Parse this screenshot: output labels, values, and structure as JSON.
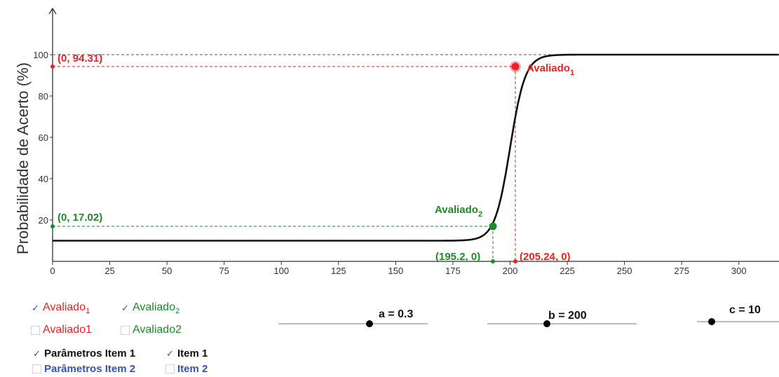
{
  "graph": {
    "y_axis_label": "Probabilidade de Acerto (%)",
    "x_ticks": [
      "0",
      "25",
      "50",
      "75",
      "100",
      "125",
      "150",
      "175",
      "200",
      "225",
      "250",
      "275",
      "300"
    ],
    "y_ticks": [
      "20",
      "40",
      "60",
      "80",
      "100"
    ],
    "point1": {
      "coord_label": "(0, 94.31)",
      "x_label": "(205.24, 0)",
      "name": "Avaliado",
      "sub": "1"
    },
    "point2": {
      "coord_label": "(0, 17.02)",
      "x_label": "(195.2, 0)",
      "name": "Avaliado",
      "sub": "2"
    }
  },
  "chart_data": {
    "type": "line",
    "title": "",
    "xlabel": "",
    "ylabel": "Probabilidade de Acerto (%)",
    "xlim": [
      0,
      315
    ],
    "ylim": [
      0,
      120
    ],
    "grid": false,
    "curve": {
      "function": "logistic",
      "a": 0.3,
      "b": 200,
      "c": 10
    },
    "points": [
      {
        "name": "Avaliado1",
        "x": 205.24,
        "y": 94.31,
        "color": "#ee2222"
      },
      {
        "name": "Avaliado2",
        "x": 195.2,
        "y": 17.02,
        "color": "#1e8a2a"
      }
    ]
  },
  "controls": {
    "avaliado1_sub": {
      "label": "Avaliado",
      "sub": "1",
      "checked": true
    },
    "avaliado2_sub": {
      "label": "Avaliado",
      "sub": "2",
      "checked": true
    },
    "avaliado1": {
      "label": "Avaliado1",
      "checked": false
    },
    "avaliado2": {
      "label": "Avaliado2",
      "checked": false
    },
    "param_item1": {
      "label": "Parâmetros Item 1",
      "checked": true
    },
    "item1": {
      "label": "Item 1",
      "checked": true
    },
    "param_item2": {
      "label": "Parâmetros Item 2",
      "checked": false
    },
    "item2": {
      "label": "Item 2",
      "checked": false
    }
  },
  "sliders": {
    "a": {
      "label": "a = 0.3",
      "value": 0.3,
      "min": -0.5,
      "max": 1
    },
    "b": {
      "label": "b = 200",
      "value": 200,
      "min": -200,
      "max": 500
    },
    "c": {
      "label": "c = 10",
      "value": 10,
      "min": 0,
      "max": 100
    }
  },
  "colors": {
    "red": "#ee2222",
    "green": "#1e8a2a",
    "curve": "#111111",
    "axis": "#333333",
    "blue": "#3355bb"
  },
  "check_glyph": "✓"
}
